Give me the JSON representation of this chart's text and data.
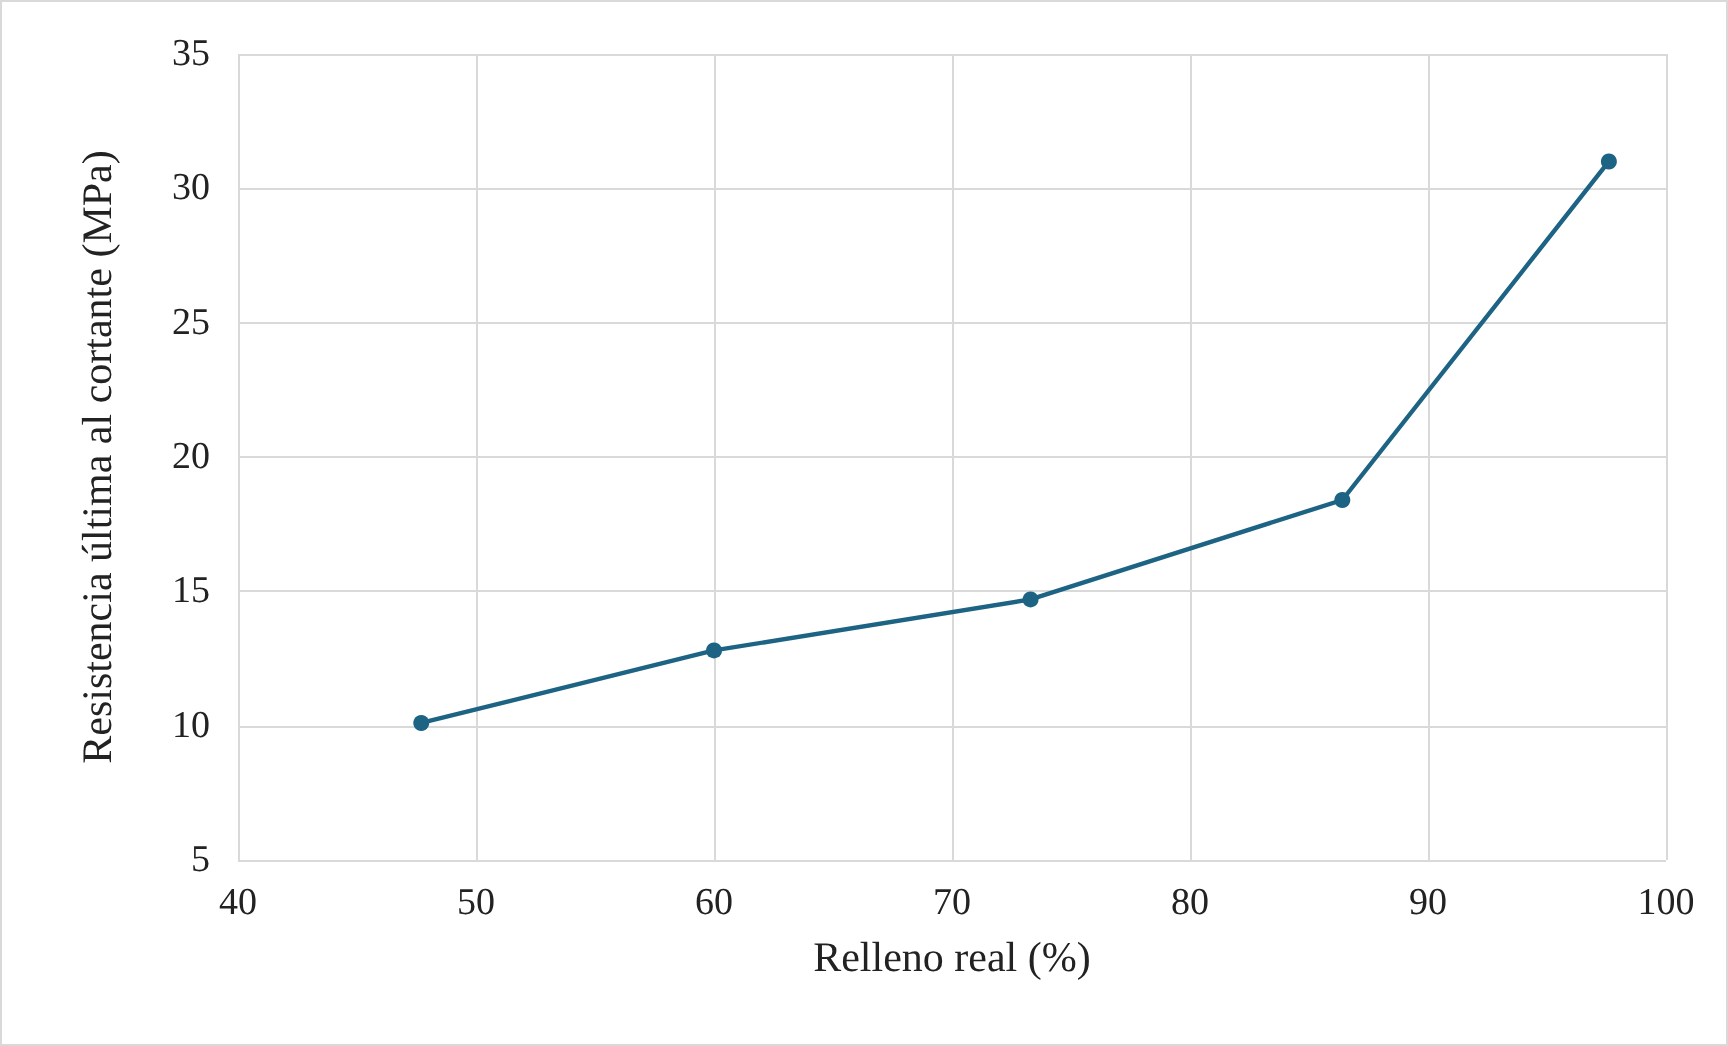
{
  "chart_data": {
    "type": "line",
    "xlabel": "Relleno real (%)",
    "ylabel": "Resistencia última al cortante (MPa)",
    "x": [
      47.7,
      60.0,
      73.3,
      86.4,
      97.6
    ],
    "series": [
      {
        "color": "#1d6383",
        "values": [
          10.1,
          12.8,
          14.7,
          18.4,
          31.0
        ]
      }
    ],
    "xlim": [
      40,
      100
    ],
    "xticks": [
      40,
      50,
      60,
      70,
      80,
      90,
      100
    ],
    "ylim": [
      5,
      35
    ],
    "yticks": [
      5,
      10,
      15,
      20,
      25,
      30,
      35
    ],
    "grid": true,
    "marker": "circle",
    "line_style": "solid"
  }
}
